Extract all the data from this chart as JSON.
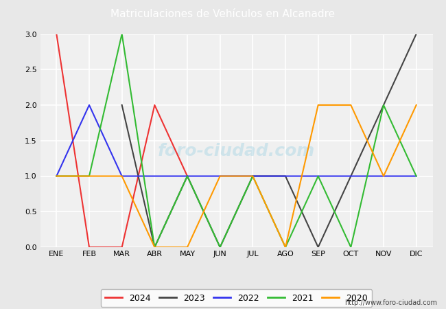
{
  "title": "Matriculaciones de Vehículos en Alcanadre",
  "title_bg_color": "#4472C4",
  "title_text_color": "#FFFFFF",
  "months": [
    "ENE",
    "FEB",
    "MAR",
    "ABR",
    "MAY",
    "JUN",
    "JUL",
    "AGO",
    "SEP",
    "OCT",
    "NOV",
    "DIC"
  ],
  "series": {
    "2024": {
      "color": "#EE3333",
      "data": [
        3,
        0,
        0,
        2,
        1,
        null,
        null,
        null,
        null,
        null,
        null,
        null
      ]
    },
    "2023": {
      "color": "#444444",
      "data": [
        null,
        null,
        2,
        0,
        1,
        0,
        1,
        1,
        0,
        null,
        null,
        3
      ]
    },
    "2022": {
      "color": "#3333EE",
      "data": [
        1,
        2,
        1,
        1,
        1,
        1,
        1,
        1,
        1,
        1,
        1,
        1
      ]
    },
    "2021": {
      "color": "#33BB33",
      "data": [
        1,
        1,
        3,
        0,
        1,
        0,
        1,
        0,
        1,
        0,
        2,
        1
      ]
    },
    "2020": {
      "color": "#FF9900",
      "data": [
        1,
        1,
        1,
        0,
        0,
        1,
        1,
        0,
        2,
        2,
        1,
        2
      ]
    }
  },
  "ylim": [
    0,
    3.0
  ],
  "yticks": [
    0.0,
    0.5,
    1.0,
    1.5,
    2.0,
    2.5,
    3.0
  ],
  "background_color": "#E8E8E8",
  "plot_bg_color": "#F0F0F0",
  "grid_color": "#FFFFFF",
  "watermark": "foro-ciudad.com",
  "url": "http://www.foro-ciudad.com",
  "legend_order": [
    "2024",
    "2023",
    "2022",
    "2021",
    "2020"
  ],
  "linewidth": 1.5,
  "fig_width": 6.5,
  "fig_height": 4.5,
  "dpi": 100
}
